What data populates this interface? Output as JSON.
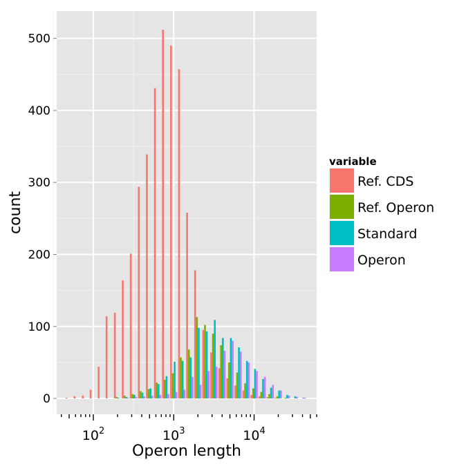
{
  "chart_data": {
    "type": "bar",
    "xlabel": "Operon length",
    "ylabel": "count",
    "x_scale": "log10",
    "xlim": [
      35,
      60000
    ],
    "ylim": [
      -22,
      538
    ],
    "x_ticks": [
      {
        "value": 100,
        "base": "10",
        "exp": "2"
      },
      {
        "value": 1000,
        "base": "10",
        "exp": "3"
      },
      {
        "value": 10000,
        "base": "10",
        "exp": "4"
      }
    ],
    "y_ticks": [
      0,
      100,
      200,
      300,
      400,
      500
    ],
    "legend": {
      "title": "variable",
      "position": "right"
    },
    "bins": [
      50,
      63,
      80,
      100,
      126,
      158,
      200,
      251,
      316,
      398,
      501,
      631,
      794,
      1000,
      1259,
      1585,
      1995,
      2512,
      3162,
      3981,
      5012,
      6310,
      7943,
      10000,
      12589,
      15849,
      19953,
      25119,
      31623,
      39811
    ],
    "series": [
      {
        "name": "Ref. CDS",
        "color": "#F8766D",
        "values": [
          1,
          3,
          4,
          12,
          44,
          114,
          119,
          164,
          201,
          294,
          339,
          431,
          512,
          490,
          457,
          258,
          178,
          95,
          64,
          42,
          28,
          18,
          11,
          5,
          3,
          2,
          1,
          0,
          0,
          0
        ]
      },
      {
        "name": "Ref. Operon",
        "color": "#7CAE00",
        "values": [
          0,
          0,
          0,
          0,
          0,
          0,
          2,
          4,
          6,
          10,
          13,
          22,
          26,
          35,
          57,
          68,
          113,
          102,
          90,
          74,
          50,
          36,
          21,
          14,
          9,
          6,
          3,
          1,
          0,
          0
        ]
      },
      {
        "name": "Standard",
        "color": "#00BFC4",
        "values": [
          0,
          0,
          0,
          0,
          0,
          0,
          1,
          2,
          5,
          8,
          14,
          20,
          31,
          51,
          52,
          57,
          98,
          93,
          109,
          84,
          84,
          71,
          52,
          41,
          27,
          15,
          11,
          5,
          3,
          1
        ]
      },
      {
        "name": "Operon",
        "color": "#C77CFF",
        "values": [
          0,
          0,
          0,
          0,
          0,
          0,
          0,
          1,
          2,
          3,
          4,
          5,
          6,
          9,
          12,
          30,
          19,
          38,
          44,
          66,
          80,
          65,
          50,
          38,
          30,
          19,
          11,
          4,
          2,
          1
        ]
      }
    ]
  }
}
